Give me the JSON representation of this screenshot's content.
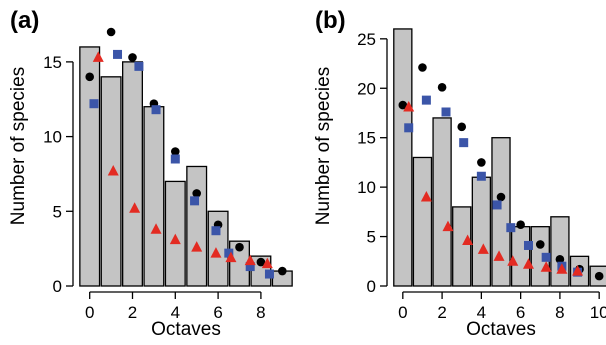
{
  "colors": {
    "bar": "#c4c4c4",
    "circle": "#000000",
    "square": "#3b55a8",
    "triangle": "#e32b22"
  },
  "chart_data": [
    {
      "type": "bar",
      "panel_label": "(a)",
      "xlabel": "Octaves",
      "ylabel": "Number of species",
      "xlim": [
        -0.5,
        9.5
      ],
      "ylim": [
        0,
        17
      ],
      "xticks": [
        0,
        2,
        4,
        6,
        8
      ],
      "yticks": [
        0,
        5,
        10,
        15
      ],
      "categories": [
        0,
        1,
        2,
        3,
        4,
        5,
        6,
        7,
        8,
        9
      ],
      "values": [
        16,
        14,
        15,
        12,
        7,
        8,
        5,
        3,
        2,
        1
      ],
      "series": [
        {
          "marker": "circle",
          "points": [
            [
              0,
              14
            ],
            [
              1,
              17
            ],
            [
              2,
              15.3
            ],
            [
              3,
              12.2
            ],
            [
              4,
              9
            ],
            [
              5,
              6.2
            ],
            [
              6,
              4.1
            ],
            [
              7,
              2.6
            ],
            [
              8,
              1.6
            ],
            [
              9,
              1
            ]
          ]
        },
        {
          "marker": "square",
          "points": [
            [
              0.2,
              12.2
            ],
            [
              1.3,
              15.5
            ],
            [
              2.3,
              14.7
            ],
            [
              3.1,
              11.8
            ],
            [
              4,
              8.5
            ],
            [
              4.9,
              5.7
            ],
            [
              5.9,
              3.7
            ],
            [
              6.5,
              2.2
            ],
            [
              7.5,
              1.3
            ],
            [
              8.4,
              0.8
            ]
          ]
        },
        {
          "marker": "triangle",
          "points": [
            [
              0.4,
              15.3
            ],
            [
              1.1,
              7.7
            ],
            [
              2.1,
              5.2
            ],
            [
              3.1,
              3.8
            ],
            [
              4,
              3.1
            ],
            [
              5,
              2.6
            ],
            [
              5.9,
              2.2
            ],
            [
              6.6,
              1.9
            ],
            [
              7.5,
              1.7
            ],
            [
              8.3,
              1.5
            ]
          ]
        }
      ]
    },
    {
      "type": "bar",
      "panel_label": "(b)",
      "xlabel": "Octaves",
      "ylabel": "Number of species",
      "xlim": [
        -0.5,
        10.5
      ],
      "ylim": [
        0,
        26.5
      ],
      "xticks": [
        0,
        2,
        4,
        6,
        8,
        10
      ],
      "yticks": [
        0,
        5,
        10,
        15,
        20,
        25
      ],
      "categories": [
        0,
        1,
        2,
        3,
        4,
        5,
        6,
        7,
        8,
        9,
        10
      ],
      "values": [
        26,
        13,
        17,
        8,
        11,
        15,
        6,
        6,
        7,
        3,
        2
      ],
      "series": [
        {
          "marker": "circle",
          "points": [
            [
              0,
              18.3
            ],
            [
              1,
              22.1
            ],
            [
              2,
              20.1
            ],
            [
              3,
              16.1
            ],
            [
              4,
              12.5
            ],
            [
              5,
              9
            ],
            [
              6,
              6.2
            ],
            [
              7,
              4.2
            ],
            [
              8,
              2.7
            ],
            [
              9,
              1.7
            ],
            [
              10,
              1
            ]
          ]
        },
        {
          "marker": "square",
          "points": [
            [
              0.3,
              16
            ],
            [
              1.2,
              18.8
            ],
            [
              2.2,
              17.6
            ],
            [
              3.1,
              14.5
            ],
            [
              4,
              11.1
            ],
            [
              4.8,
              8.2
            ],
            [
              5.5,
              5.9
            ],
            [
              6.4,
              4.1
            ],
            [
              7.3,
              2.9
            ],
            [
              8.1,
              2
            ],
            [
              8.9,
              1.4
            ]
          ]
        },
        {
          "marker": "triangle",
          "points": [
            [
              0.3,
              18.1
            ],
            [
              1.2,
              9
            ],
            [
              2.3,
              6
            ],
            [
              3.3,
              4.6
            ],
            [
              4.1,
              3.7
            ],
            [
              4.9,
              3
            ],
            [
              5.6,
              2.5
            ],
            [
              6.4,
              2.2
            ],
            [
              7.3,
              1.9
            ],
            [
              8.1,
              1.7
            ],
            [
              8.9,
              1.5
            ]
          ]
        }
      ]
    }
  ]
}
